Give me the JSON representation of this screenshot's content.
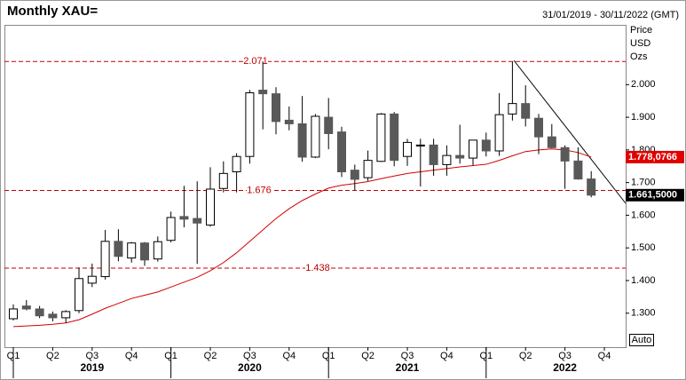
{
  "chart_data": {
    "type": "candlestick",
    "title": "Monthly XAU=",
    "date_range": "31/01/2019 - 30/11/2022 (GMT)",
    "unit_lines": [
      "Price",
      "USD",
      "Ozs"
    ],
    "categories": [
      "Q1",
      null,
      null,
      "Q2",
      null,
      null,
      "Q3",
      null,
      null,
      "Q4",
      null,
      null,
      "Q1",
      null,
      null,
      "Q2",
      null,
      null,
      "Q3",
      null,
      null,
      "Q4",
      null,
      null,
      "Q1",
      null,
      null,
      "Q2",
      null,
      null,
      "Q3",
      null,
      null,
      "Q4",
      null,
      null,
      "Q1",
      null,
      null,
      "Q2",
      null,
      null,
      "Q3",
      null,
      null,
      "Q4"
    ],
    "years": [
      "2019",
      "2020",
      "2021",
      "2022"
    ],
    "open": [
      1.283,
      1.322,
      1.313,
      1.297,
      1.286,
      1.308,
      1.392,
      1.412,
      1.52,
      1.469,
      1.515,
      1.466,
      1.523,
      1.596,
      1.59,
      1.57,
      1.682,
      1.733,
      1.78,
      1.983,
      1.972,
      1.891,
      1.88,
      1.778,
      1.9,
      1.855,
      1.738,
      1.715,
      1.765,
      1.91,
      1.78,
      1.812,
      1.815,
      1.755,
      1.783,
      1.775,
      1.83,
      1.797,
      1.91,
      1.942,
      1.897,
      1.84,
      1.807,
      1.766,
      1.711,
      null
    ],
    "high": [
      1.327,
      1.34,
      1.322,
      1.305,
      1.309,
      1.44,
      1.452,
      1.555,
      1.557,
      1.518,
      1.518,
      1.535,
      1.611,
      1.69,
      1.704,
      1.747,
      1.765,
      1.79,
      1.984,
      2.071,
      1.992,
      1.933,
      1.965,
      1.91,
      1.959,
      1.871,
      1.755,
      1.798,
      1.913,
      1.916,
      1.834,
      1.834,
      1.834,
      1.814,
      1.877,
      1.831,
      1.853,
      1.974,
      2.07,
      1.998,
      1.91,
      1.879,
      1.814,
      1.808,
      1.735,
      null
    ],
    "low": [
      1.278,
      1.309,
      1.285,
      1.275,
      1.27,
      1.3,
      1.38,
      1.403,
      1.459,
      1.455,
      1.445,
      1.458,
      1.517,
      1.563,
      1.451,
      1.565,
      1.67,
      1.67,
      1.758,
      1.863,
      1.848,
      1.86,
      1.764,
      1.775,
      1.802,
      1.717,
      1.677,
      1.705,
      1.763,
      1.75,
      1.751,
      1.688,
      1.721,
      1.721,
      1.758,
      1.753,
      1.78,
      1.782,
      1.89,
      1.872,
      1.787,
      1.805,
      1.681,
      1.709,
      1.655,
      null
    ],
    "close": [
      1.313,
      1.313,
      1.292,
      1.286,
      1.305,
      1.406,
      1.413,
      1.52,
      1.474,
      1.515,
      1.463,
      1.519,
      1.593,
      1.588,
      1.576,
      1.68,
      1.728,
      1.78,
      1.975,
      1.972,
      1.887,
      1.88,
      1.778,
      1.903,
      1.85,
      1.733,
      1.71,
      1.768,
      1.91,
      1.768,
      1.823,
      1.815,
      1.755,
      1.783,
      1.775,
      1.83,
      1.797,
      1.908,
      1.942,
      1.897,
      1.84,
      1.807,
      1.766,
      1.711,
      1.6615,
      null
    ],
    "up_color": "#ffffff",
    "down_color": "#595959",
    "moving_average": {
      "color": "#d40000",
      "values": [
        1.259,
        1.261,
        1.263,
        1.266,
        1.27,
        1.28,
        1.297,
        1.315,
        1.33,
        1.345,
        1.355,
        1.365,
        1.38,
        1.395,
        1.41,
        1.43,
        1.455,
        1.485,
        1.52,
        1.555,
        1.59,
        1.62,
        1.645,
        1.665,
        1.683,
        1.692,
        1.697,
        1.703,
        1.712,
        1.72,
        1.728,
        1.733,
        1.738,
        1.743,
        1.748,
        1.752,
        1.756,
        1.768,
        1.782,
        1.795,
        1.8,
        1.803,
        1.8,
        1.792,
        1.778,
        null
      ]
    },
    "ma_label": {
      "value": 1.7780766,
      "label": "1.778,0766"
    },
    "last_label": {
      "value": 1.6615,
      "label": "1.661,5000"
    },
    "levels": [
      {
        "value": 2.071,
        "label": "2.071"
      },
      {
        "value": 1.676,
        "label": "1.676"
      },
      {
        "value": 1.438,
        "label": "1.438"
      }
    ],
    "level_color": "#c00000",
    "ylim": [
      1.196,
      2.183
    ],
    "yticks": [
      {
        "value": 1.3,
        "label": "1.300"
      },
      {
        "value": 1.4,
        "label": "1.400"
      },
      {
        "value": 1.5,
        "label": "1.500"
      },
      {
        "value": 1.6,
        "label": "1.600"
      },
      {
        "value": 1.7,
        "label": "1.700"
      },
      {
        "value": 1.8,
        "label": "1.800"
      },
      {
        "value": 1.9,
        "label": "1.900"
      },
      {
        "value": 2.0,
        "label": "2.000"
      }
    ],
    "auto_button": "Auto"
  }
}
